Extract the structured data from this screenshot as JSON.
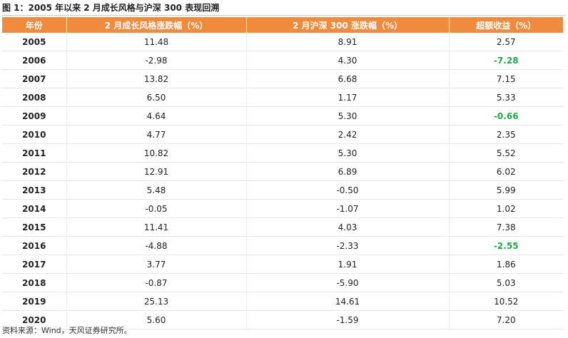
{
  "caption": "图 1：2005 年以来 2 月成长风格与沪深 300 表现回溯",
  "table": {
    "headers": [
      "年份",
      "2 月成长风格涨跌幅（%）",
      "2 月沪深 300 涨跌幅（%）",
      "超额收益（%）"
    ],
    "rows": [
      {
        "year": "2005",
        "growth": "11.48",
        "hs300": "8.91",
        "excess": "2.57",
        "highlight": false
      },
      {
        "year": "2006",
        "growth": "-2.98",
        "hs300": "4.30",
        "excess": "-7.28",
        "highlight": true
      },
      {
        "year": "2007",
        "growth": "13.82",
        "hs300": "6.68",
        "excess": "7.15",
        "highlight": false
      },
      {
        "year": "2008",
        "growth": "6.50",
        "hs300": "1.17",
        "excess": "5.33",
        "highlight": false
      },
      {
        "year": "2009",
        "growth": "4.64",
        "hs300": "5.30",
        "excess": "-0.66",
        "highlight": true
      },
      {
        "year": "2010",
        "growth": "4.77",
        "hs300": "2.42",
        "excess": "2.35",
        "highlight": false
      },
      {
        "year": "2011",
        "growth": "10.82",
        "hs300": "5.30",
        "excess": "5.52",
        "highlight": false
      },
      {
        "year": "2012",
        "growth": "12.91",
        "hs300": "6.89",
        "excess": "6.02",
        "highlight": false
      },
      {
        "year": "2013",
        "growth": "5.48",
        "hs300": "-0.50",
        "excess": "5.99",
        "highlight": false
      },
      {
        "year": "2014",
        "growth": "-0.05",
        "hs300": "-1.07",
        "excess": "1.02",
        "highlight": false
      },
      {
        "year": "2015",
        "growth": "11.41",
        "hs300": "4.03",
        "excess": "7.38",
        "highlight": false
      },
      {
        "year": "2016",
        "growth": "-4.88",
        "hs300": "-2.33",
        "excess": "-2.55",
        "highlight": true
      },
      {
        "year": "2017",
        "growth": "3.77",
        "hs300": "1.91",
        "excess": "1.86",
        "highlight": false
      },
      {
        "year": "2018",
        "growth": "-0.87",
        "hs300": "-5.90",
        "excess": "5.03",
        "highlight": false
      },
      {
        "year": "2019",
        "growth": "25.13",
        "hs300": "14.61",
        "excess": "10.52",
        "highlight": false
      },
      {
        "year": "2020",
        "growth": "5.60",
        "hs300": "-1.59",
        "excess": "7.20",
        "highlight": false
      }
    ]
  },
  "source": "资料来源：Wind，天风证券研究所。",
  "colors": {
    "header_bg": "#f08a3c",
    "negative_highlight": "#22a84a"
  }
}
